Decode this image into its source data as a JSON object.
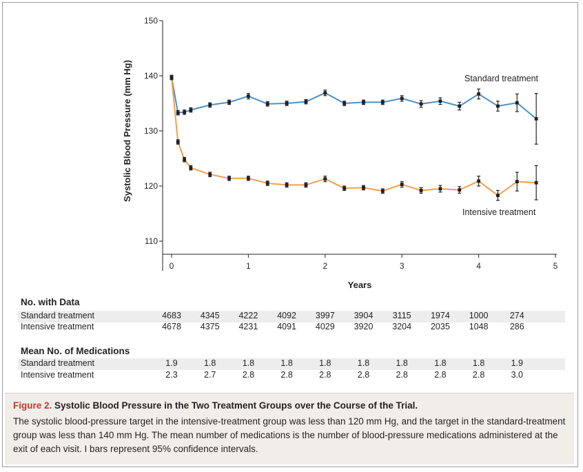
{
  "chart_data": {
    "type": "line",
    "ylabel": "Systolic Blood Pressure (mm Hg)",
    "xlabel": "Years",
    "xlim": [
      -0.1,
      5
    ],
    "ylim": [
      105,
      150
    ],
    "x_ticks": [
      0,
      1,
      2,
      3,
      4,
      5
    ],
    "y_ticks": [
      110,
      120,
      130,
      140,
      150
    ],
    "grid": false,
    "error_bars": "95% confidence intervals",
    "series": [
      {
        "name": "Standard treatment",
        "color": "#4a90c8",
        "points": [
          {
            "x": 0,
            "y": 139.7,
            "lo": 139.3,
            "hi": 140.1
          },
          {
            "x": 0.083,
            "y": 133.3,
            "lo": 132.9,
            "hi": 133.7
          },
          {
            "x": 0.167,
            "y": 133.4,
            "lo": 133.0,
            "hi": 133.8
          },
          {
            "x": 0.25,
            "y": 133.8,
            "lo": 133.4,
            "hi": 134.2
          },
          {
            "x": 0.5,
            "y": 134.7,
            "lo": 134.3,
            "hi": 135.1
          },
          {
            "x": 0.75,
            "y": 135.2,
            "lo": 134.8,
            "hi": 135.6
          },
          {
            "x": 1,
            "y": 136.3,
            "lo": 135.8,
            "hi": 136.8
          },
          {
            "x": 1.25,
            "y": 134.9,
            "lo": 134.5,
            "hi": 135.3
          },
          {
            "x": 1.5,
            "y": 135.0,
            "lo": 134.6,
            "hi": 135.4
          },
          {
            "x": 1.75,
            "y": 135.3,
            "lo": 134.9,
            "hi": 135.7
          },
          {
            "x": 2,
            "y": 136.9,
            "lo": 136.4,
            "hi": 137.4
          },
          {
            "x": 2.25,
            "y": 135.0,
            "lo": 134.6,
            "hi": 135.4
          },
          {
            "x": 2.5,
            "y": 135.2,
            "lo": 134.8,
            "hi": 135.6
          },
          {
            "x": 2.75,
            "y": 135.2,
            "lo": 134.8,
            "hi": 135.6
          },
          {
            "x": 3,
            "y": 135.9,
            "lo": 135.4,
            "hi": 136.4
          },
          {
            "x": 3.25,
            "y": 134.9,
            "lo": 134.3,
            "hi": 135.5
          },
          {
            "x": 3.5,
            "y": 135.4,
            "lo": 134.8,
            "hi": 136.0
          },
          {
            "x": 3.75,
            "y": 134.5,
            "lo": 133.8,
            "hi": 135.2
          },
          {
            "x": 4,
            "y": 136.7,
            "lo": 135.8,
            "hi": 137.6
          },
          {
            "x": 4.25,
            "y": 134.5,
            "lo": 133.6,
            "hi": 135.4
          },
          {
            "x": 4.5,
            "y": 135.1,
            "lo": 133.5,
            "hi": 136.7
          },
          {
            "x": 4.75,
            "y": 132.2,
            "lo": 127.6,
            "hi": 136.8
          }
        ]
      },
      {
        "name": "Intensive treatment",
        "color": "#f0a04b",
        "points": [
          {
            "x": 0,
            "y": 139.7,
            "lo": 139.3,
            "hi": 140.1
          },
          {
            "x": 0.083,
            "y": 128.0,
            "lo": 127.6,
            "hi": 128.4
          },
          {
            "x": 0.167,
            "y": 124.8,
            "lo": 124.4,
            "hi": 125.2
          },
          {
            "x": 0.25,
            "y": 123.3,
            "lo": 122.9,
            "hi": 123.7
          },
          {
            "x": 0.5,
            "y": 122.1,
            "lo": 121.7,
            "hi": 122.5
          },
          {
            "x": 0.75,
            "y": 121.4,
            "lo": 121.0,
            "hi": 121.8
          },
          {
            "x": 1,
            "y": 121.4,
            "lo": 121.0,
            "hi": 121.8
          },
          {
            "x": 1.25,
            "y": 120.5,
            "lo": 120.1,
            "hi": 120.9
          },
          {
            "x": 1.5,
            "y": 120.2,
            "lo": 119.8,
            "hi": 120.6
          },
          {
            "x": 1.75,
            "y": 120.2,
            "lo": 119.8,
            "hi": 120.6
          },
          {
            "x": 2,
            "y": 121.3,
            "lo": 120.8,
            "hi": 121.8
          },
          {
            "x": 2.25,
            "y": 119.6,
            "lo": 119.2,
            "hi": 120.0
          },
          {
            "x": 2.5,
            "y": 119.7,
            "lo": 119.3,
            "hi": 120.1
          },
          {
            "x": 2.75,
            "y": 119.1,
            "lo": 118.7,
            "hi": 119.5
          },
          {
            "x": 3,
            "y": 120.3,
            "lo": 119.8,
            "hi": 120.8
          },
          {
            "x": 3.25,
            "y": 119.2,
            "lo": 118.7,
            "hi": 119.7
          },
          {
            "x": 3.5,
            "y": 119.5,
            "lo": 118.9,
            "hi": 120.1
          },
          {
            "x": 3.75,
            "y": 119.3,
            "lo": 118.7,
            "hi": 119.9
          },
          {
            "x": 4,
            "y": 120.9,
            "lo": 120.0,
            "hi": 121.8
          },
          {
            "x": 4.25,
            "y": 118.3,
            "lo": 117.4,
            "hi": 119.2
          },
          {
            "x": 4.5,
            "y": 120.8,
            "lo": 119.1,
            "hi": 122.5
          },
          {
            "x": 4.75,
            "y": 120.6,
            "lo": 117.5,
            "hi": 123.7
          }
        ]
      }
    ]
  },
  "table": {
    "data_title": "No. with Data",
    "meds_title": "Mean No. of Medications",
    "standard_label": "Standard treatment",
    "intensive_label": "Intensive treatment",
    "years_x": [
      0,
      0.5,
      1,
      1.5,
      2,
      2.5,
      3,
      3.5,
      4,
      4.5
    ],
    "data_standard": [
      "4683",
      "4345",
      "4222",
      "4092",
      "3997",
      "3904",
      "3115",
      "1974",
      "1000",
      "274"
    ],
    "data_intensive": [
      "4678",
      "4375",
      "4231",
      "4091",
      "4029",
      "3920",
      "3204",
      "2035",
      "1048",
      "286"
    ],
    "meds_standard": [
      "1.9",
      "1.8",
      "1.8",
      "1.8",
      "1.8",
      "1.8",
      "1.8",
      "1.8",
      "1.8",
      "1.9"
    ],
    "meds_intensive": [
      "2.3",
      "2.7",
      "2.8",
      "2.8",
      "2.8",
      "2.8",
      "2.8",
      "2.8",
      "2.8",
      "3.0"
    ]
  },
  "caption": {
    "label": "Figure 2.",
    "title": "Systolic Blood Pressure in the Two Treatment Groups over the Course of the Trial.",
    "body": "The systolic blood-pressure target in the intensive-treatment group was less than 120 mm Hg, and the target in the standard-treatment group was less than 140 mm Hg. The mean number of medications is the number of blood-pressure medications administered at the exit of each visit. I bars represent 95% confidence intervals."
  }
}
